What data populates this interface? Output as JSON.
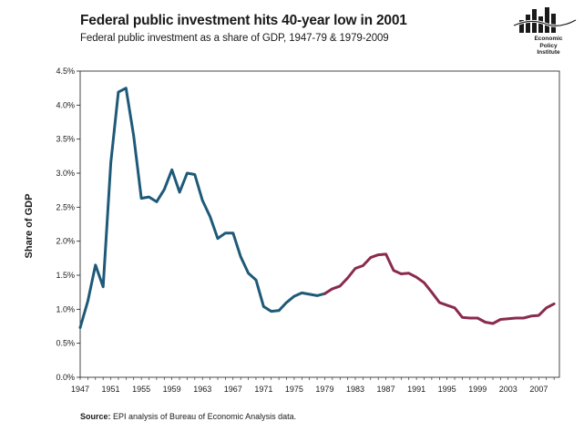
{
  "header": {
    "title": "Federal public investment hits 40-year low in 2001",
    "subtitle": "Federal public investment as a share of GDP, 1947-79 & 1979-2009"
  },
  "logo": {
    "line1": "Economic",
    "line2": "Policy",
    "line3": "Institute"
  },
  "footer": {
    "source_label": "Source:",
    "source_text": "EPI analysis of Bureau of Economic Analysis data."
  },
  "chart_data": {
    "type": "line",
    "ylabel": "Share of GDP",
    "xlabel": "",
    "ylim": [
      0,
      4.5
    ],
    "xlim": [
      1947,
      2009
    ],
    "yticks": [
      "0.0%",
      "0.5%",
      "1.0%",
      "1.5%",
      "2.0%",
      "2.5%",
      "3.0%",
      "3.5%",
      "4.0%",
      "4.5%"
    ],
    "ytick_values": [
      0,
      0.5,
      1.0,
      1.5,
      2.0,
      2.5,
      3.0,
      3.5,
      4.0,
      4.5
    ],
    "xticks": [
      "1947",
      "1951",
      "1955",
      "1959",
      "1963",
      "1967",
      "1971",
      "1975",
      "1979",
      "1983",
      "1987",
      "1991",
      "1995",
      "1999",
      "2003",
      "2007"
    ],
    "xtick_values": [
      1947,
      1951,
      1955,
      1959,
      1963,
      1967,
      1971,
      1975,
      1979,
      1983,
      1987,
      1991,
      1995,
      1999,
      2003,
      2007
    ],
    "grid": false,
    "series": [
      {
        "color": "#1e5a78",
        "x": [
          1947,
          1948,
          1949,
          1950,
          1951,
          1952,
          1953,
          1954,
          1955,
          1956,
          1957,
          1958,
          1959,
          1960,
          1961,
          1962,
          1963,
          1964,
          1965,
          1966,
          1967,
          1968,
          1969,
          1970,
          1971,
          1972,
          1973,
          1974,
          1975,
          1976,
          1977,
          1978,
          1979
        ],
        "values": [
          0.73,
          1.12,
          1.65,
          1.33,
          3.15,
          4.19,
          4.25,
          3.55,
          2.63,
          2.65,
          2.58,
          2.76,
          3.05,
          2.72,
          3.0,
          2.98,
          2.6,
          2.36,
          2.04,
          2.12,
          2.12,
          1.77,
          1.53,
          1.43,
          1.04,
          0.97,
          0.98,
          1.1,
          1.19,
          1.24,
          1.22,
          1.2,
          1.23
        ]
      },
      {
        "color": "#8a2a4e",
        "x": [
          1979,
          1980,
          1981,
          1982,
          1983,
          1984,
          1985,
          1986,
          1987,
          1988,
          1989,
          1990,
          1991,
          1992,
          1993,
          1994,
          1995,
          1996,
          1997,
          1998,
          1999,
          2000,
          2001,
          2002,
          2003,
          2004,
          2005,
          2006,
          2007,
          2008,
          2009
        ],
        "values": [
          1.23,
          1.3,
          1.34,
          1.46,
          1.6,
          1.64,
          1.76,
          1.8,
          1.81,
          1.57,
          1.52,
          1.53,
          1.47,
          1.39,
          1.25,
          1.1,
          1.06,
          1.02,
          0.88,
          0.87,
          0.87,
          0.81,
          0.79,
          0.85,
          0.86,
          0.87,
          0.87,
          0.9,
          0.91,
          1.02,
          1.08
        ]
      }
    ]
  }
}
